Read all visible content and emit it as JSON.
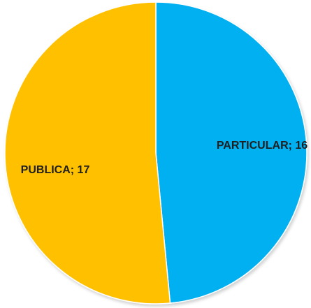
{
  "chart_data": {
    "type": "pie",
    "title": "",
    "series": [
      {
        "values": [
          {
            "label": "PARTICULAR; 16",
            "category": "PARTICULAR",
            "value": 16,
            "color": "#00B0F0"
          },
          {
            "label": "PUBLICA; 17",
            "category": "PUBLICA",
            "value": 17,
            "color": "#FFC000"
          }
        ]
      }
    ],
    "legend": "none",
    "start_angle": "top",
    "direction": "clockwise"
  }
}
